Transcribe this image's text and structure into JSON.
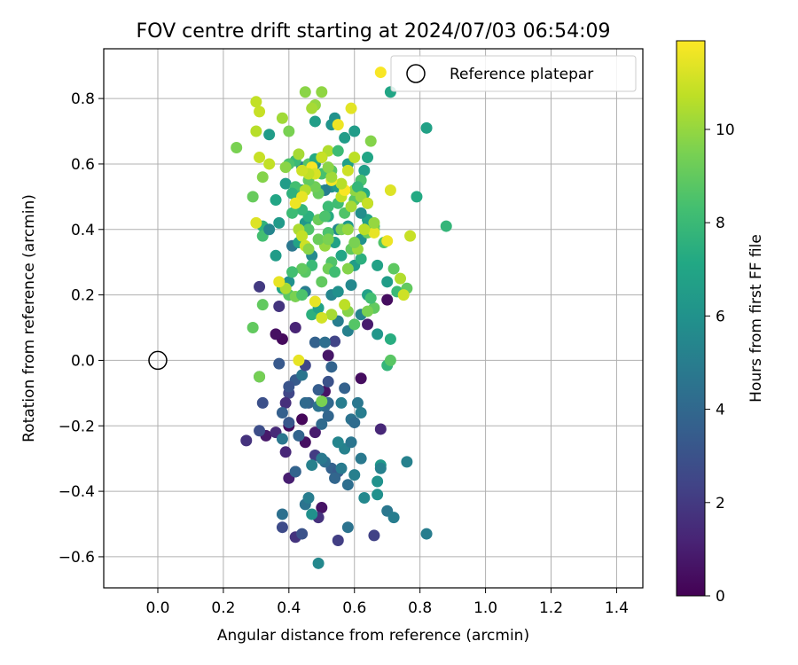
{
  "chart_data": {
    "type": "scatter",
    "title": "FOV centre drift starting at 2024/07/03 06:54:09",
    "xlabel": "Angular distance from reference (arcmin)",
    "ylabel": "Rotation from reference (arcmin)",
    "xlim": [
      -0.165,
      1.48
    ],
    "ylim": [
      -0.695,
      0.952
    ],
    "xticks": [
      0.0,
      0.2,
      0.4,
      0.6,
      0.8,
      1.0,
      1.2,
      1.4
    ],
    "xtick_labels": [
      "0.0",
      "0.2",
      "0.4",
      "0.6",
      "0.8",
      "1.0",
      "1.2",
      "1.4"
    ],
    "yticks": [
      -0.6,
      -0.4,
      -0.2,
      0.0,
      0.2,
      0.4,
      0.6,
      0.8
    ],
    "ytick_labels": [
      "−0.6",
      "−0.4",
      "−0.2",
      "0.0",
      "0.2",
      "0.4",
      "0.6",
      "0.8"
    ],
    "grid": true,
    "legend": {
      "placement": "top-right",
      "entry": "Reference platepar"
    },
    "reference_point": {
      "x": 0.0,
      "y": 0.0
    },
    "colorbar": {
      "label": "Hours from first FF file",
      "range": [
        0,
        11.9
      ],
      "ticks": [
        0,
        2,
        4,
        6,
        8,
        10
      ],
      "tick_labels": [
        "0",
        "2",
        "4",
        "6",
        "8",
        "10"
      ],
      "colormap": "viridis"
    },
    "points": [
      [
        0.38,
        0.065,
        0.3
      ],
      [
        0.42,
        0.1,
        1.2
      ],
      [
        0.36,
        0.08,
        0.5
      ],
      [
        0.52,
        0.015,
        0.7
      ],
      [
        0.62,
        -0.055,
        0.4
      ],
      [
        0.51,
        -0.095,
        0.6
      ],
      [
        0.44,
        -0.18,
        0.2
      ],
      [
        0.4,
        -0.2,
        0.3
      ],
      [
        0.48,
        -0.22,
        0.9
      ],
      [
        0.45,
        -0.25,
        0.5
      ],
      [
        0.33,
        -0.23,
        0.8
      ],
      [
        0.4,
        -0.36,
        1.0
      ],
      [
        0.39,
        -0.28,
        1.3
      ],
      [
        0.42,
        -0.34,
        1.5
      ],
      [
        0.42,
        -0.54,
        1.8
      ],
      [
        0.5,
        -0.45,
        0.6
      ],
      [
        0.49,
        -0.48,
        1.7
      ],
      [
        0.55,
        -0.55,
        2.2
      ],
      [
        0.66,
        -0.535,
        2.3
      ],
      [
        0.31,
        0.225,
        2.0
      ],
      [
        0.37,
        0.165,
        1.8
      ],
      [
        0.54,
        0.058,
        2.4
      ],
      [
        0.4,
        -0.1,
        2.5
      ],
      [
        0.39,
        -0.13,
        1.6
      ],
      [
        0.27,
        -0.245,
        1.7
      ],
      [
        0.36,
        -0.22,
        1.4
      ],
      [
        0.31,
        -0.215,
        2.8
      ],
      [
        0.48,
        -0.29,
        2.1
      ],
      [
        0.68,
        -0.21,
        1.3
      ],
      [
        0.7,
        0.185,
        0.4
      ],
      [
        0.32,
        -0.13,
        2.9
      ],
      [
        0.38,
        -0.16,
        3.6
      ],
      [
        0.49,
        -0.09,
        3.5
      ],
      [
        0.46,
        -0.13,
        3.6
      ],
      [
        0.4,
        -0.19,
        3.2
      ],
      [
        0.42,
        -0.06,
        3.4
      ],
      [
        0.4,
        -0.08,
        3.1
      ],
      [
        0.37,
        -0.01,
        3.3
      ],
      [
        0.31,
        -0.05,
        3.8
      ],
      [
        0.44,
        -0.045,
        4.6
      ],
      [
        0.51,
        -0.14,
        4.2
      ],
      [
        0.52,
        -0.17,
        3.9
      ],
      [
        0.5,
        -0.195,
        4.1
      ],
      [
        0.53,
        -0.33,
        3.7
      ],
      [
        0.55,
        -0.34,
        3.4
      ],
      [
        0.51,
        -0.31,
        4.3
      ],
      [
        0.5,
        -0.3,
        4.8
      ],
      [
        0.47,
        -0.32,
        5.2
      ],
      [
        0.42,
        -0.34,
        3.8
      ],
      [
        0.38,
        -0.47,
        4.4
      ],
      [
        0.38,
        -0.51,
        2.7
      ],
      [
        0.44,
        -0.53,
        3.0
      ],
      [
        0.47,
        -0.47,
        5.9
      ],
      [
        0.45,
        -0.44,
        4.5
      ],
      [
        0.46,
        -0.42,
        5.0
      ],
      [
        0.49,
        -0.62,
        5.5
      ],
      [
        0.58,
        -0.51,
        4.5
      ],
      [
        0.54,
        -0.36,
        3.9
      ],
      [
        0.56,
        -0.33,
        4.9
      ],
      [
        0.58,
        -0.38,
        4.3
      ],
      [
        0.6,
        -0.35,
        5.1
      ],
      [
        0.62,
        -0.3,
        4.8
      ],
      [
        0.63,
        -0.42,
        5.5
      ],
      [
        0.67,
        -0.41,
        5.9
      ],
      [
        0.67,
        -0.37,
        6.0
      ],
      [
        0.68,
        -0.32,
        6.3
      ],
      [
        0.68,
        -0.33,
        5.2
      ],
      [
        0.7,
        -0.46,
        4.7
      ],
      [
        0.72,
        -0.48,
        5.0
      ],
      [
        0.76,
        -0.31,
        5.2
      ],
      [
        0.82,
        -0.53,
        5.0
      ],
      [
        0.57,
        -0.27,
        5.2
      ],
      [
        0.55,
        -0.25,
        5.4
      ],
      [
        0.59,
        -0.25,
        4.6
      ],
      [
        0.59,
        -0.18,
        4.5
      ],
      [
        0.56,
        -0.13,
        5.0
      ],
      [
        0.52,
        -0.13,
        4.0
      ],
      [
        0.49,
        -0.14,
        4.5
      ],
      [
        0.45,
        -0.13,
        4.1
      ],
      [
        0.43,
        -0.23,
        3.8
      ],
      [
        0.38,
        -0.24,
        4.7
      ],
      [
        0.45,
        -0.015,
        2.5
      ],
      [
        0.53,
        -0.02,
        3.8
      ],
      [
        0.57,
        -0.085,
        3.7
      ],
      [
        0.61,
        -0.13,
        4.7
      ],
      [
        0.62,
        -0.16,
        5.0
      ],
      [
        0.6,
        -0.19,
        4.2
      ],
      [
        0.52,
        -0.065,
        3.0
      ],
      [
        0.48,
        0.055,
        3.7
      ],
      [
        0.51,
        0.055,
        4.3
      ],
      [
        0.55,
        0.12,
        5.0
      ],
      [
        0.58,
        0.09,
        5.2
      ],
      [
        0.62,
        0.14,
        5.3
      ],
      [
        0.64,
        0.11,
        0.9
      ],
      [
        0.67,
        0.08,
        6.2
      ],
      [
        0.71,
        0.065,
        7.4
      ],
      [
        0.7,
        -0.015,
        7.8
      ],
      [
        0.71,
        0.0,
        8.8
      ],
      [
        0.34,
        0.69,
        6.5
      ],
      [
        0.41,
        0.35,
        4.7
      ],
      [
        0.36,
        0.32,
        6.5
      ],
      [
        0.38,
        0.22,
        7.0
      ],
      [
        0.4,
        0.24,
        6.0
      ],
      [
        0.45,
        0.21,
        5.0
      ],
      [
        0.47,
        0.14,
        7.5
      ],
      [
        0.49,
        0.16,
        6.8
      ],
      [
        0.53,
        0.2,
        5.4
      ],
      [
        0.55,
        0.21,
        5.9
      ],
      [
        0.59,
        0.23,
        5.5
      ],
      [
        0.6,
        0.29,
        6.5
      ],
      [
        0.64,
        0.2,
        6.8
      ],
      [
        0.62,
        0.31,
        7.5
      ],
      [
        0.67,
        0.29,
        6.8
      ],
      [
        0.7,
        0.24,
        6.5
      ],
      [
        0.73,
        0.21,
        8.0
      ],
      [
        0.55,
        0.4,
        5.6
      ],
      [
        0.58,
        0.41,
        6.3
      ],
      [
        0.62,
        0.37,
        6.0
      ],
      [
        0.64,
        0.43,
        6.8
      ],
      [
        0.62,
        0.45,
        5.8
      ],
      [
        0.64,
        0.41,
        6.7
      ],
      [
        0.53,
        0.53,
        5.8
      ],
      [
        0.55,
        0.53,
        6.5
      ],
      [
        0.5,
        0.62,
        5.7
      ],
      [
        0.53,
        0.72,
        6.1
      ],
      [
        0.51,
        0.52,
        5.1
      ],
      [
        0.49,
        0.52,
        5.5
      ],
      [
        0.44,
        0.59,
        5.0
      ],
      [
        0.44,
        0.52,
        5.6
      ],
      [
        0.45,
        0.42,
        6.3
      ],
      [
        0.43,
        0.36,
        6.9
      ],
      [
        0.47,
        0.32,
        5.6
      ],
      [
        0.36,
        0.49,
        7.0
      ],
      [
        0.39,
        0.54,
        6.5
      ],
      [
        0.32,
        0.41,
        7.6
      ],
      [
        0.37,
        0.42,
        6.4
      ],
      [
        0.32,
        0.38,
        8.3
      ],
      [
        0.34,
        0.4,
        5.4
      ],
      [
        0.48,
        0.6,
        5.8
      ],
      [
        0.48,
        0.73,
        6.6
      ],
      [
        0.54,
        0.74,
        6.0
      ],
      [
        0.57,
        0.68,
        6.5
      ],
      [
        0.58,
        0.6,
        6.7
      ],
      [
        0.6,
        0.7,
        6.5
      ],
      [
        0.63,
        0.58,
        6.6
      ],
      [
        0.64,
        0.62,
        7.0
      ],
      [
        0.64,
        0.48,
        6.5
      ],
      [
        0.66,
        0.41,
        7.5
      ],
      [
        0.63,
        0.51,
        7.2
      ],
      [
        0.71,
        0.82,
        7.0
      ],
      [
        0.82,
        0.71,
        6.8
      ],
      [
        0.79,
        0.5,
        7.2
      ],
      [
        0.88,
        0.41,
        7.8
      ],
      [
        0.56,
        0.32,
        7.0
      ],
      [
        0.54,
        0.36,
        6.8
      ],
      [
        0.52,
        0.44,
        7.3
      ],
      [
        0.52,
        0.47,
        8.1
      ],
      [
        0.46,
        0.44,
        7.5
      ],
      [
        0.46,
        0.4,
        8.6
      ],
      [
        0.44,
        0.46,
        7.8
      ],
      [
        0.42,
        0.53,
        8.3
      ],
      [
        0.41,
        0.51,
        7.6
      ],
      [
        0.42,
        0.61,
        8.0
      ],
      [
        0.4,
        0.6,
        8.5
      ],
      [
        0.41,
        0.45,
        8.1
      ],
      [
        0.47,
        0.29,
        8.0
      ],
      [
        0.45,
        0.27,
        8.8
      ],
      [
        0.44,
        0.28,
        9.0
      ],
      [
        0.41,
        0.27,
        8.3
      ],
      [
        0.4,
        0.2,
        8.8
      ],
      [
        0.42,
        0.195,
        9.5
      ],
      [
        0.44,
        0.2,
        8.5
      ],
      [
        0.39,
        0.22,
        10.4
      ],
      [
        0.5,
        0.24,
        9.0
      ],
      [
        0.53,
        0.3,
        8.6
      ],
      [
        0.52,
        0.28,
        9.3
      ],
      [
        0.54,
        0.27,
        8.2
      ],
      [
        0.52,
        0.39,
        8.5
      ],
      [
        0.51,
        0.35,
        10.0
      ],
      [
        0.49,
        0.37,
        9.2
      ],
      [
        0.52,
        0.37,
        9.5
      ],
      [
        0.49,
        0.43,
        9.2
      ],
      [
        0.51,
        0.44,
        8.5
      ],
      [
        0.49,
        0.51,
        9.1
      ],
      [
        0.48,
        0.53,
        9.3
      ],
      [
        0.46,
        0.55,
        9.0
      ],
      [
        0.46,
        0.6,
        8.7
      ],
      [
        0.48,
        0.615,
        7.2
      ],
      [
        0.5,
        0.57,
        8.4
      ],
      [
        0.53,
        0.58,
        8.8
      ],
      [
        0.55,
        0.48,
        8.2
      ],
      [
        0.57,
        0.45,
        8.6
      ],
      [
        0.56,
        0.4,
        9.4
      ],
      [
        0.59,
        0.34,
        9.0
      ],
      [
        0.58,
        0.28,
        9.7
      ],
      [
        0.61,
        0.34,
        10.1
      ],
      [
        0.6,
        0.36,
        9.5
      ],
      [
        0.6,
        0.49,
        8.8
      ],
      [
        0.6,
        0.52,
        9.9
      ],
      [
        0.62,
        0.55,
        8.5
      ],
      [
        0.61,
        0.53,
        7.8
      ],
      [
        0.62,
        0.5,
        10.0
      ],
      [
        0.64,
        0.39,
        9.2
      ],
      [
        0.66,
        0.4,
        9.5
      ],
      [
        0.69,
        0.36,
        8.6
      ],
      [
        0.66,
        0.16,
        9.0
      ],
      [
        0.65,
        0.19,
        8.3
      ],
      [
        0.64,
        0.15,
        9.5
      ],
      [
        0.6,
        0.11,
        8.7
      ],
      [
        0.58,
        0.15,
        9.7
      ],
      [
        0.57,
        0.17,
        10.7
      ],
      [
        0.53,
        0.14,
        10.3
      ],
      [
        0.5,
        0.13,
        11.1
      ],
      [
        0.48,
        0.18,
        11.5
      ],
      [
        0.5,
        -0.125,
        9.5
      ],
      [
        0.72,
        0.28,
        8.9
      ],
      [
        0.74,
        0.25,
        10.5
      ],
      [
        0.76,
        0.22,
        9.0
      ],
      [
        0.75,
        0.2,
        11.0
      ],
      [
        0.77,
        0.38,
        10.9
      ],
      [
        0.7,
        0.365,
        11.6
      ],
      [
        0.71,
        0.52,
        11.3
      ],
      [
        0.66,
        0.39,
        11.5
      ],
      [
        0.64,
        0.48,
        10.9
      ],
      [
        0.63,
        0.4,
        10.7
      ],
      [
        0.59,
        0.47,
        10.3
      ],
      [
        0.58,
        0.4,
        10.0
      ],
      [
        0.56,
        0.5,
        10.8
      ],
      [
        0.57,
        0.52,
        11.8
      ],
      [
        0.56,
        0.54,
        10.6
      ],
      [
        0.53,
        0.55,
        11.7
      ],
      [
        0.53,
        0.56,
        10.2
      ],
      [
        0.52,
        0.59,
        9.8
      ],
      [
        0.52,
        0.64,
        10.5
      ],
      [
        0.5,
        0.62,
        10.9
      ],
      [
        0.47,
        0.59,
        11.8
      ],
      [
        0.48,
        0.57,
        11.2
      ],
      [
        0.46,
        0.57,
        10.8
      ],
      [
        0.43,
        0.63,
        10.3
      ],
      [
        0.44,
        0.58,
        11.0
      ],
      [
        0.45,
        0.52,
        10.5
      ],
      [
        0.44,
        0.5,
        11.5
      ],
      [
        0.42,
        0.48,
        11.6
      ],
      [
        0.43,
        0.4,
        10.4
      ],
      [
        0.44,
        0.38,
        10.8
      ],
      [
        0.45,
        0.35,
        11.0
      ],
      [
        0.46,
        0.34,
        9.8
      ],
      [
        0.4,
        0.7,
        9.5
      ],
      [
        0.38,
        0.74,
        10.2
      ],
      [
        0.39,
        0.59,
        9.8
      ],
      [
        0.34,
        0.6,
        10.8
      ],
      [
        0.32,
        0.56,
        9.7
      ],
      [
        0.31,
        0.62,
        10.9
      ],
      [
        0.3,
        0.7,
        10.6
      ],
      [
        0.29,
        0.5,
        9.1
      ],
      [
        0.31,
        0.76,
        10.9
      ],
      [
        0.3,
        0.79,
        10.8
      ],
      [
        0.24,
        0.65,
        9.5
      ],
      [
        0.3,
        0.42,
        11.3
      ],
      [
        0.29,
        0.1,
        9.0
      ],
      [
        0.31,
        -0.05,
        9.4
      ],
      [
        0.32,
        0.17,
        9.0
      ],
      [
        0.37,
        0.24,
        11.5
      ],
      [
        0.43,
        0.0,
        11.5
      ],
      [
        0.45,
        0.82,
        9.8
      ],
      [
        0.48,
        0.78,
        10.0
      ],
      [
        0.47,
        0.77,
        10.3
      ],
      [
        0.5,
        0.82,
        9.9
      ],
      [
        0.59,
        0.77,
        11.4
      ],
      [
        0.55,
        0.72,
        11.6
      ],
      [
        0.55,
        0.64,
        8.1
      ],
      [
        0.6,
        0.62,
        10.7
      ],
      [
        0.58,
        0.58,
        11.0
      ],
      [
        0.65,
        0.67,
        9.7
      ],
      [
        0.66,
        0.42,
        10.0
      ],
      [
        0.68,
        0.88,
        11.8
      ]
    ]
  }
}
